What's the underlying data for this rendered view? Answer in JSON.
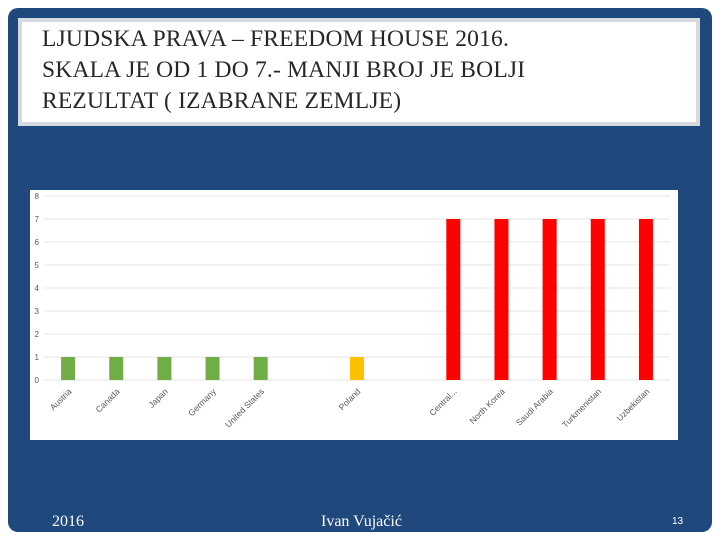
{
  "slide": {
    "title": "LJUDSKA PRAVA – FREEDOM HOUSE 2016. \nSKALA JE OD 1 DO 7.-  MANJI BROJ JE BOLJI \nREZULTAT  ( IZABRANE ZEMLJE)",
    "footer_date": "2016",
    "footer_author": "Ivan Vujačić",
    "page_number": "13"
  },
  "colors": {
    "slide_background": "#1f497d",
    "good": "#70ad47",
    "partly": "#ffc000",
    "bad": "#ff0000"
  },
  "chart_data": {
    "type": "bar",
    "title": "",
    "xlabel": "",
    "ylabel": "",
    "ylim": [
      0,
      8
    ],
    "yticks": [
      "0",
      "1",
      "2",
      "3",
      "4",
      "5",
      "6",
      "7",
      "8"
    ],
    "grid": true,
    "categories": [
      "Austria",
      "Canada",
      "Japan",
      "Germany",
      "United States",
      "",
      "Poland",
      "",
      "Central...",
      "North Korea",
      "Saudi Arabia",
      "Turkmenistan",
      "Uzbekistan"
    ],
    "values": [
      1,
      1,
      1,
      1,
      1,
      null,
      1,
      null,
      7,
      7,
      7,
      7,
      7
    ],
    "bar_colors": [
      "#70ad47",
      "#70ad47",
      "#70ad47",
      "#70ad47",
      "#70ad47",
      null,
      "#ffc000",
      null,
      "#ff0000",
      "#ff0000",
      "#ff0000",
      "#ff0000",
      "#ff0000"
    ]
  }
}
